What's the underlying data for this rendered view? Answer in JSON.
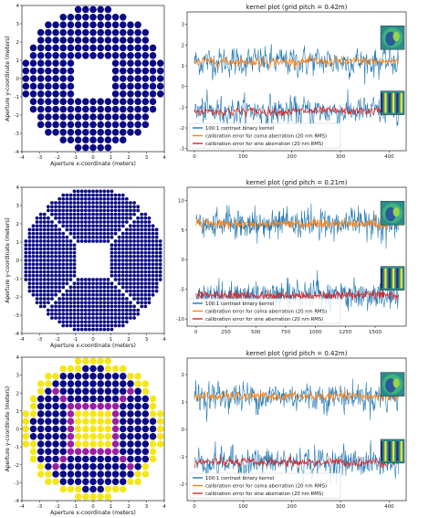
{
  "chart_data": [
    {
      "type": "scatter",
      "title": "",
      "xlabel": "Aperture x-coordinate (meters)",
      "ylabel": "Aperture y-coordinate (meters)",
      "xlim": [
        -4,
        4
      ],
      "ylim": [
        -4,
        4
      ],
      "xticks": [
        "-4",
        "-3",
        "-2",
        "-1",
        "0",
        "1",
        "2",
        "3",
        "4"
      ],
      "yticks": [
        "-4",
        "-3",
        "-2",
        "-1",
        "0",
        "1",
        "2",
        "3",
        "4"
      ],
      "aperture": {
        "outer_radius_m": 3.95,
        "central_hole_half_width_m": 1.0,
        "pitch_m": 0.42,
        "spokes": false,
        "color": "#0a0a84",
        "hole_color": "#ffffff"
      }
    },
    {
      "type": "line",
      "title": "kernel plot (grid pitch = 0.42m)",
      "xlim": [
        -15,
        435
      ],
      "ylim": [
        -3.1,
        3.6
      ],
      "xticks": [
        "0",
        "100",
        "200",
        "300",
        "400"
      ],
      "yticks": [
        "-3",
        "-2",
        "-1",
        "0",
        "1",
        "2",
        "3"
      ],
      "legend_position": "lower-left",
      "series": [
        {
          "name": "100:1 contrast binary kernel",
          "color": "#1f77b4"
        },
        {
          "name": "calibration error for coma aberration (20 nm RMS)",
          "color": "#ff7f0e"
        },
        {
          "name": "calibration error for sine aberration (20 nm RMS)",
          "color": "#d62728"
        }
      ],
      "approx_levels": {
        "upper_band_center": 1.2,
        "lower_band_center": -1.2,
        "n_points": 420
      },
      "inset_images": [
        "coma-aberration-thumbnail",
        "sine-aberration-thumbnail"
      ]
    },
    {
      "type": "scatter",
      "title": "",
      "xlabel": "Aperture x-coordinate (meters)",
      "ylabel": "Aperture y-coordinate (meters)",
      "xlim": [
        -4,
        4
      ],
      "ylim": [
        -4,
        4
      ],
      "xticks": [
        "-4",
        "-3",
        "-2",
        "-1",
        "0",
        "1",
        "2",
        "3",
        "4"
      ],
      "yticks": [
        "-4",
        "-3",
        "-2",
        "-1",
        "0",
        "1",
        "2",
        "3",
        "4"
      ],
      "aperture": {
        "outer_radius_m": 3.95,
        "central_hole_half_width_m": 1.0,
        "pitch_m": 0.21,
        "spokes": true,
        "color": "#0a0a84",
        "hole_color": "#ffffff"
      }
    },
    {
      "type": "line",
      "title": "kernel plot (grid pitch = 0.21m)",
      "xlim": [
        -75,
        1760
      ],
      "ylim": [
        -11.2,
        12.2
      ],
      "xticks": [
        "0",
        "250",
        "500",
        "750",
        "1000",
        "1250",
        "1500"
      ],
      "yticks": [
        "-10",
        "-5",
        "0",
        "5",
        "10"
      ],
      "legend_position": "lower-left",
      "series": [
        {
          "name": "100:1 contrast binary kernel",
          "color": "#1f77b4"
        },
        {
          "name": "calibration error for coma aberration (20 nm RMS)",
          "color": "#ff7f0e"
        },
        {
          "name": "calibration error for sine aberration (20 nm RMS)",
          "color": "#d62728"
        }
      ],
      "approx_levels": {
        "upper_band_center": 6.0,
        "lower_band_center": -6.0,
        "n_points": 1700
      },
      "inset_images": [
        "coma-aberration-thumbnail",
        "sine-aberration-thumbnail"
      ]
    },
    {
      "type": "scatter",
      "title": "",
      "xlabel": "Aperture x-coordinate (meters)",
      "ylabel": "Aperture y-coordinate (meters)",
      "xlim": [
        -4,
        4
      ],
      "ylim": [
        -4,
        4
      ],
      "xticks": [
        "-4",
        "-3",
        "-2",
        "-1",
        "0",
        "1",
        "2",
        "3",
        "4"
      ],
      "yticks": [
        "-4",
        "-3",
        "-2",
        "-1",
        "0",
        "1",
        "2",
        "3",
        "4"
      ],
      "aperture": {
        "outer_radius_m": 3.95,
        "central_hole_half_width_m": 1.0,
        "pitch_m": 0.42,
        "spokes": true,
        "color": "#0a0a84",
        "spoke_color": "#9b1fa0",
        "edge_color": "#f5e61a",
        "hole_color": "#f5e61a"
      }
    },
    {
      "type": "line",
      "title": "kernel plot (grid pitch = 0.42m)",
      "xlim": [
        -15,
        435
      ],
      "ylim": [
        -2.6,
        2.6
      ],
      "xticks": [
        "0",
        "100",
        "200",
        "300",
        "400"
      ],
      "yticks": [
        "-2",
        "-1",
        "0",
        "1",
        "2"
      ],
      "legend_position": "lower-left",
      "series": [
        {
          "name": "100:1 contrast binary kernel",
          "color": "#1f77b4"
        },
        {
          "name": "calibration error for coma aberration (20 nm RMS)",
          "color": "#ff7f0e"
        },
        {
          "name": "calibration error for sine aberration (20 nm RMS)",
          "color": "#d62728"
        }
      ],
      "approx_levels": {
        "upper_band_center": 1.2,
        "lower_band_center": -1.2,
        "n_points": 420
      },
      "inset_images": [
        "coma-aberration-thumbnail",
        "sine-aberration-thumbnail"
      ]
    }
  ]
}
